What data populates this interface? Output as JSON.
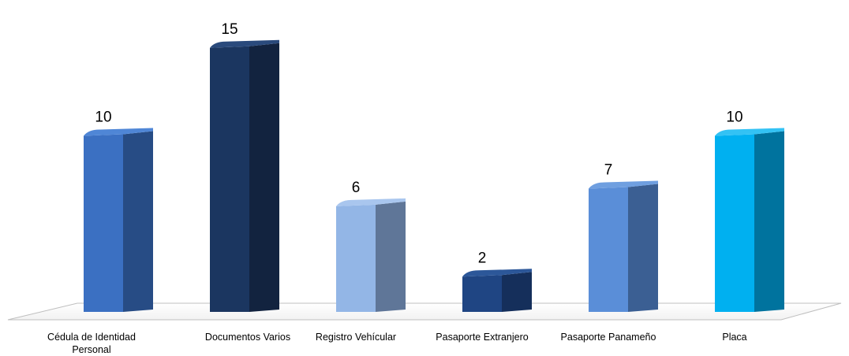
{
  "chart_data": {
    "type": "bar",
    "title": "",
    "xlabel": "",
    "ylabel": "",
    "ylim": [
      0,
      15
    ],
    "grid": false,
    "legend": "none",
    "categories": [
      [
        "Cédula de Identidad",
        "Personal"
      ],
      [
        "Documentos Varios"
      ],
      [
        "Registro Vehícular"
      ],
      [
        "Pasaporte Extranjero"
      ],
      [
        "Pasaporte Panameño"
      ],
      [
        "Placa"
      ]
    ],
    "values": [
      10,
      15,
      6,
      2,
      7,
      10
    ],
    "colors": [
      {
        "front": "#3b70c2",
        "side": "#274c85",
        "top": "#4f86d6"
      },
      {
        "front": "#1b3660",
        "side": "#12233f",
        "top": "#2a4a7c"
      },
      {
        "front": "#93b6e6",
        "side": "#5f7698",
        "top": "#a9c6ee"
      },
      {
        "front": "#1f4583",
        "side": "#152f5b",
        "top": "#2c5799"
      },
      {
        "front": "#5a8ed8",
        "side": "#3b5f93",
        "top": "#6f9fe0"
      },
      {
        "front": "#00b0f0",
        "side": "#00739e",
        "top": "#33c2f4"
      }
    ]
  }
}
